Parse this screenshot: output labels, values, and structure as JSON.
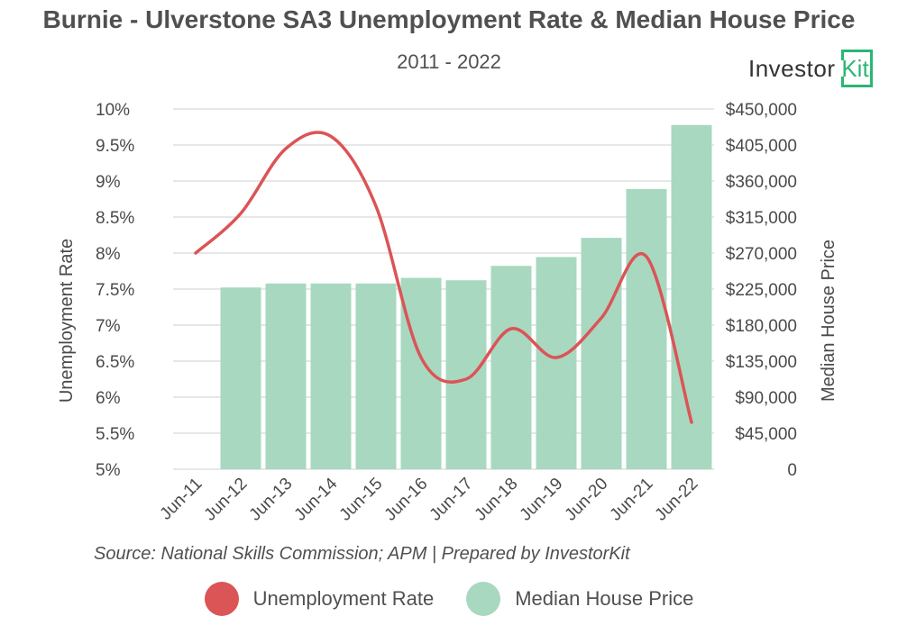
{
  "header": {
    "title": "Burnie - Ulverstone SA3 Unemployment Rate & Median House Price",
    "subtitle": "2011 - 2022",
    "logo_main": "Investor",
    "logo_box": "Kit"
  },
  "footer": {
    "source": "Source: National Skills Commission; APM | Prepared by InvestorKit"
  },
  "colors": {
    "line": "#db5456",
    "bar": "#a8d8c0",
    "grid": "#cfcfcf",
    "text": "#4a4a4a",
    "brand": "#2bb673"
  },
  "chart_data": {
    "type": "bar",
    "categories": [
      "Jun-11",
      "Jun-12",
      "Jun-13",
      "Jun-14",
      "Jun-15",
      "Jun-16",
      "Jun-17",
      "Jun-18",
      "Jun-19",
      "Jun-20",
      "Jun-21",
      "Jun-22"
    ],
    "series": [
      {
        "name": "Unemployment Rate",
        "type": "line",
        "axis": "left",
        "values": [
          8.0,
          8.55,
          9.45,
          9.62,
          8.65,
          6.55,
          6.25,
          6.95,
          6.55,
          7.1,
          7.95,
          5.65
        ]
      },
      {
        "name": "Median House Price",
        "type": "bar",
        "axis": "right",
        "values": [
          null,
          227000,
          232000,
          232000,
          232000,
          239000,
          236000,
          254000,
          265000,
          289000,
          350000,
          430000
        ]
      }
    ],
    "y_left": {
      "label": "Unemployment Rate",
      "ylim": [
        5,
        10
      ],
      "ticks": [
        "5%",
        "5.5%",
        "6%",
        "6.5%",
        "7%",
        "7.5%",
        "8%",
        "8.5%",
        "9%",
        "9.5%",
        "10%"
      ]
    },
    "y_right": {
      "label": "Median House Price",
      "ylim": [
        0,
        450000
      ],
      "ticks": [
        "0",
        "$45,000",
        "$90,000",
        "$135,000",
        "$180,000",
        "$225,000",
        "$270,000",
        "$315,000",
        "$360,000",
        "$405,000",
        "$450,000"
      ]
    },
    "grid": true,
    "legend_position": "bottom"
  }
}
